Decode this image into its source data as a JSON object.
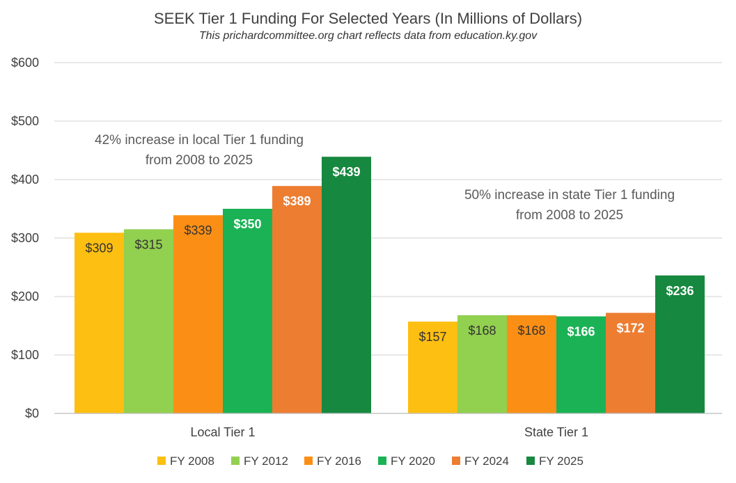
{
  "title": "SEEK Tier 1 Funding For Selected Years (In Millions of Dollars)",
  "subtitle": "This prichardcommittee.org chart reflects data from education.ky.gov",
  "annotations": {
    "local": "42% increase in local Tier 1 funding from 2008 to 2025",
    "state": "50% increase in state Tier 1 funding from 2008 to 2025"
  },
  "chart_data": {
    "type": "bar",
    "title": "SEEK Tier 1 Funding For Selected Years (In Millions of Dollars)",
    "categories": [
      "Local Tier 1",
      "State Tier 1"
    ],
    "series": [
      {
        "name": "FY 2008",
        "values": [
          309,
          157
        ],
        "labels": [
          "$309",
          "$157"
        ],
        "color": "#FDBF11",
        "label_color": "#333333"
      },
      {
        "name": "FY 2012",
        "values": [
          315,
          168
        ],
        "labels": [
          "$315",
          "$168"
        ],
        "color": "#92D050",
        "label_color": "#333333"
      },
      {
        "name": "FY 2016",
        "values": [
          339,
          168
        ],
        "labels": [
          "$339",
          "$168"
        ],
        "color": "#FB8F16",
        "label_color": "#333333"
      },
      {
        "name": "FY 2020",
        "values": [
          350,
          166
        ],
        "labels": [
          "$350",
          "$166"
        ],
        "color": "#1BB255",
        "label_color": "#ffffff"
      },
      {
        "name": "FY 2024",
        "values": [
          389,
          172
        ],
        "labels": [
          "$389",
          "$172"
        ],
        "color": "#ED7D31",
        "label_color": "#ffffff"
      },
      {
        "name": "FY 2025",
        "values": [
          439,
          236
        ],
        "labels": [
          "$439",
          "$236"
        ],
        "color": "#17883F",
        "label_color": "#ffffff"
      }
    ],
    "ylim": [
      0,
      600
    ],
    "yticks": [
      0,
      100,
      200,
      300,
      400,
      500,
      600
    ],
    "ytick_labels": [
      "$0",
      "$100",
      "$200",
      "$300",
      "$400",
      "$500",
      "$600"
    ],
    "xlabel": "",
    "ylabel": "",
    "grid": true,
    "legend_position": "bottom"
  }
}
